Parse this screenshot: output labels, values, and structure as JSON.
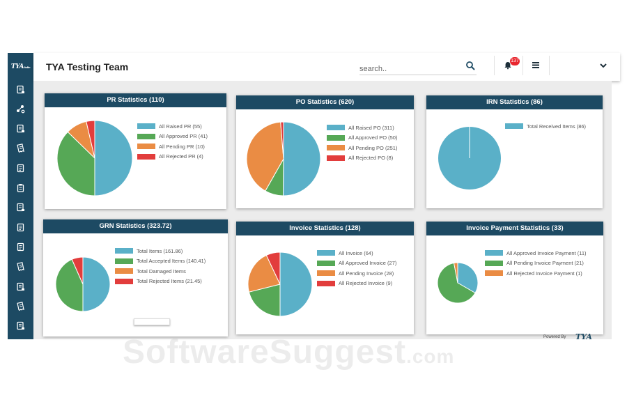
{
  "app": {
    "logo_text": "TYA",
    "logo_sub": "Suite"
  },
  "header": {
    "title": "TYA Testing Team",
    "search_placeholder": "search..",
    "notification_count": "137"
  },
  "sidebar": {
    "items": [
      {
        "icon": "document-stack-icon"
      },
      {
        "icon": "workflow-icon"
      },
      {
        "icon": "document-stack-icon"
      },
      {
        "icon": "receipt-icon"
      },
      {
        "icon": "document-icon"
      },
      {
        "icon": "clipboard-icon"
      },
      {
        "icon": "document-stack-icon"
      },
      {
        "icon": "document-icon"
      },
      {
        "icon": "document-icon"
      },
      {
        "icon": "receipt-icon"
      },
      {
        "icon": "document-stack-icon"
      },
      {
        "icon": "receipt-icon"
      },
      {
        "icon": "document-stack-icon"
      }
    ]
  },
  "colors": {
    "blue": "#5ab0c8",
    "green": "#56a856",
    "orange": "#ea8c44",
    "red": "#e23d3c",
    "navy": "#1d4a63"
  },
  "cards": [
    {
      "id": "pr",
      "title": "PR Statistics (110)",
      "chart_data": {
        "type": "pie",
        "title": "PR Statistics (110)",
        "legend": "right",
        "slices": [
          {
            "label": "All Raised PR (55)",
            "value": 55,
            "color": "#5ab0c8"
          },
          {
            "label": "All Approved PR (41)",
            "value": 41,
            "color": "#56a856"
          },
          {
            "label": "All Pending PR (10)",
            "value": 10,
            "color": "#ea8c44"
          },
          {
            "label": "All Rejected PR (4)",
            "value": 4,
            "color": "#e23d3c"
          }
        ]
      }
    },
    {
      "id": "po",
      "title": "PO Statistics (620)",
      "chart_data": {
        "type": "pie",
        "title": "PO Statistics (620)",
        "legend": "right",
        "slices": [
          {
            "label": "All Raised PO (311)",
            "value": 311,
            "color": "#5ab0c8"
          },
          {
            "label": "All Approved PO (50)",
            "value": 50,
            "color": "#56a856"
          },
          {
            "label": "All Pending PO (251)",
            "value": 251,
            "color": "#ea8c44"
          },
          {
            "label": "All Rejected PO (8)",
            "value": 8,
            "color": "#e23d3c"
          }
        ]
      }
    },
    {
      "id": "irn",
      "title": "IRN Statistics (86)",
      "chart_data": {
        "type": "pie",
        "title": "IRN Statistics (86)",
        "legend": "right",
        "slices": [
          {
            "label": "Total Received Items (86)",
            "value": 86,
            "color": "#5ab0c8"
          }
        ]
      }
    },
    {
      "id": "grn",
      "title": "GRN Statistics (323.72)",
      "chart_data": {
        "type": "pie",
        "title": "GRN Statistics (323.72)",
        "legend": "right",
        "slices": [
          {
            "label": "Total Items (161.86)",
            "value": 161.86,
            "color": "#5ab0c8"
          },
          {
            "label": "Total Accepted Items (140.41)",
            "value": 140.41,
            "color": "#56a856"
          },
          {
            "label": "Total Damaged Items",
            "value": 0,
            "color": "#ea8c44"
          },
          {
            "label": "Total Rejected Items (21.45)",
            "value": 21.45,
            "color": "#e23d3c"
          }
        ]
      }
    },
    {
      "id": "invoice",
      "title": "Invoice Statistics (128)",
      "chart_data": {
        "type": "pie",
        "title": "Invoice Statistics (128)",
        "legend": "right",
        "slices": [
          {
            "label": "All Invoice (64)",
            "value": 64,
            "color": "#5ab0c8"
          },
          {
            "label": "All Approved Invoice (27)",
            "value": 27,
            "color": "#56a856"
          },
          {
            "label": "All Pending Invoice (28)",
            "value": 28,
            "color": "#ea8c44"
          },
          {
            "label": "All Rejected Invoice (9)",
            "value": 9,
            "color": "#e23d3c"
          }
        ]
      }
    },
    {
      "id": "payment",
      "title": "Invoice Payment Statistics (33)",
      "chart_data": {
        "type": "pie",
        "title": "Invoice Payment Statistics (33)",
        "legend": "right",
        "slices": [
          {
            "label": "All Approved Invoice Payment (11)",
            "value": 11,
            "color": "#5ab0c8"
          },
          {
            "label": "All Pending Invoice Payment (21)",
            "value": 21,
            "color": "#56a856"
          },
          {
            "label": "All Rejected Invoice Payment (1)",
            "value": 1,
            "color": "#ea8c44"
          }
        ]
      }
    }
  ],
  "footer": {
    "powered_by": "Powered By",
    "powered_logo": "TYA"
  },
  "watermark": {
    "text": "SoftwareSuggest",
    "suffix": ".com"
  }
}
